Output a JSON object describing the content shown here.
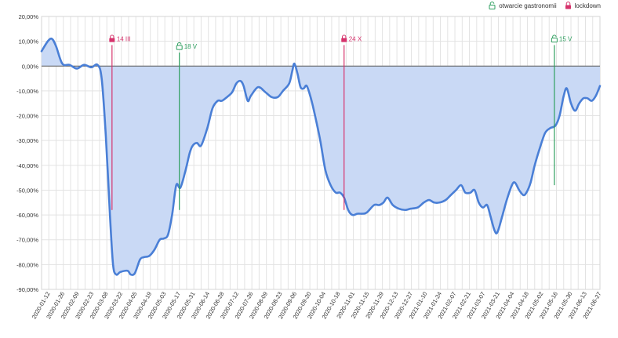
{
  "chart_data": {
    "type": "area",
    "ylim": [
      -90,
      20
    ],
    "y_ticks": [
      20,
      10,
      0,
      -10,
      -20,
      -30,
      -40,
      -50,
      -60,
      -70,
      -80,
      -90
    ],
    "y_tick_labels": [
      "20,00%",
      "10,00%",
      "0,00%",
      "-10,00%",
      "-20,00%",
      "-30,00%",
      "-40,00%",
      "-50,00%",
      "-60,00%",
      "-70,00%",
      "-80,00%",
      "-90,00%"
    ],
    "x_range": [
      "2020-01-06",
      "2021-06-28"
    ],
    "x_tick_labels": [
      "2020-01-12",
      "2020-01-26",
      "2020-02-09",
      "2020-02-23",
      "2020-03-08",
      "2020-03-22",
      "2020-04-05",
      "2020-04-19",
      "2020-05-03",
      "2020-05-17",
      "2020-05-31",
      "2020-06-14",
      "2020-06-28",
      "2020-07-12",
      "2020-07-26",
      "2020-08-09",
      "2020-08-23",
      "2020-09-06",
      "2020-09-20",
      "2020-10-04",
      "2020-10-18",
      "2020-11-01",
      "2020-11-15",
      "2020-11-29",
      "2020-12-13",
      "2020-12-27",
      "2021-01-10",
      "2021-01-24",
      "2021-02-07",
      "2021-02-21",
      "2021-03-07",
      "2021-03-21",
      "2021-04-04",
      "2021-04-18",
      "2021-05-02",
      "2021-05-16",
      "2021-05-30",
      "2021-06-13",
      "2021-06-27"
    ],
    "grid": true,
    "legend_position": "top-right",
    "series": [
      {
        "color": "#4a7fd6",
        "fill": "#c9d9f5",
        "points": [
          [
            "2020-01-06",
            6
          ],
          [
            "2020-01-12",
            10
          ],
          [
            "2020-01-16",
            11
          ],
          [
            "2020-01-20",
            8
          ],
          [
            "2020-01-26",
            1
          ],
          [
            "2020-02-02",
            0.5
          ],
          [
            "2020-02-09",
            -1
          ],
          [
            "2020-02-16",
            0.5
          ],
          [
            "2020-02-23",
            -0.5
          ],
          [
            "2020-02-29",
            0.5
          ],
          [
            "2020-03-04",
            -5
          ],
          [
            "2020-03-08",
            -28
          ],
          [
            "2020-03-12",
            -60
          ],
          [
            "2020-03-15",
            -80
          ],
          [
            "2020-03-18",
            -84
          ],
          [
            "2020-03-22",
            -83
          ],
          [
            "2020-03-29",
            -82.5
          ],
          [
            "2020-04-01",
            -84
          ],
          [
            "2020-04-05",
            -83.5
          ],
          [
            "2020-04-10",
            -78
          ],
          [
            "2020-04-14",
            -77
          ],
          [
            "2020-04-19",
            -76.5
          ],
          [
            "2020-04-24",
            -74
          ],
          [
            "2020-04-29",
            -70
          ],
          [
            "2020-05-03",
            -69.5
          ],
          [
            "2020-05-07",
            -68
          ],
          [
            "2020-05-11",
            -60
          ],
          [
            "2020-05-15",
            -48
          ],
          [
            "2020-05-19",
            -49
          ],
          [
            "2020-05-24",
            -42
          ],
          [
            "2020-05-28",
            -35
          ],
          [
            "2020-05-31",
            -32
          ],
          [
            "2020-06-04",
            -31
          ],
          [
            "2020-06-08",
            -32
          ],
          [
            "2020-06-14",
            -25
          ],
          [
            "2020-06-19",
            -17
          ],
          [
            "2020-06-24",
            -14
          ],
          [
            "2020-06-28",
            -14
          ],
          [
            "2020-07-03",
            -12.5
          ],
          [
            "2020-07-08",
            -10.5
          ],
          [
            "2020-07-12",
            -7
          ],
          [
            "2020-07-16",
            -6
          ],
          [
            "2020-07-19",
            -8
          ],
          [
            "2020-07-23",
            -14
          ],
          [
            "2020-07-26",
            -12
          ],
          [
            "2020-08-02",
            -8.5
          ],
          [
            "2020-08-09",
            -10.5
          ],
          [
            "2020-08-15",
            -12.5
          ],
          [
            "2020-08-21",
            -12.5
          ],
          [
            "2020-08-26",
            -10
          ],
          [
            "2020-09-01",
            -7
          ],
          [
            "2020-09-04",
            -2
          ],
          [
            "2020-09-06",
            1
          ],
          [
            "2020-09-09",
            -3
          ],
          [
            "2020-09-12",
            -8.5
          ],
          [
            "2020-09-15",
            -9
          ],
          [
            "2020-09-18",
            -8
          ],
          [
            "2020-09-22",
            -13
          ],
          [
            "2020-09-26",
            -20
          ],
          [
            "2020-10-01",
            -30
          ],
          [
            "2020-10-06",
            -42
          ],
          [
            "2020-10-11",
            -48
          ],
          [
            "2020-10-16",
            -51
          ],
          [
            "2020-10-20",
            -51
          ],
          [
            "2020-10-24",
            -53
          ],
          [
            "2020-10-28",
            -58
          ],
          [
            "2020-11-01",
            -60
          ],
          [
            "2020-11-06",
            -59.5
          ],
          [
            "2020-11-11",
            -59.5
          ],
          [
            "2020-11-15",
            -59
          ],
          [
            "2020-11-22",
            -56
          ],
          [
            "2020-11-27",
            -56
          ],
          [
            "2020-12-01",
            -55
          ],
          [
            "2020-12-05",
            -53
          ],
          [
            "2020-12-10",
            -56
          ],
          [
            "2020-12-16",
            -57.5
          ],
          [
            "2020-12-22",
            -58
          ],
          [
            "2020-12-27",
            -57.5
          ],
          [
            "2021-01-03",
            -57
          ],
          [
            "2021-01-09",
            -55
          ],
          [
            "2021-01-14",
            -54
          ],
          [
            "2021-01-19",
            -55
          ],
          [
            "2021-01-24",
            -55
          ],
          [
            "2021-01-30",
            -54
          ],
          [
            "2021-02-04",
            -52
          ],
          [
            "2021-02-09",
            -50
          ],
          [
            "2021-02-14",
            -48
          ],
          [
            "2021-02-18",
            -51
          ],
          [
            "2021-02-23",
            -51
          ],
          [
            "2021-02-27",
            -50
          ],
          [
            "2021-03-03",
            -55
          ],
          [
            "2021-03-07",
            -57
          ],
          [
            "2021-03-11",
            -56
          ],
          [
            "2021-03-14",
            -60
          ],
          [
            "2021-03-18",
            -66
          ],
          [
            "2021-03-21",
            -67
          ],
          [
            "2021-03-26",
            -60
          ],
          [
            "2021-03-30",
            -54
          ],
          [
            "2021-04-04",
            -48
          ],
          [
            "2021-04-07",
            -47
          ],
          [
            "2021-04-11",
            -50
          ],
          [
            "2021-04-15",
            -52
          ],
          [
            "2021-04-18",
            -51
          ],
          [
            "2021-04-22",
            -47
          ],
          [
            "2021-04-26",
            -40
          ],
          [
            "2021-05-01",
            -33
          ],
          [
            "2021-05-06",
            -27
          ],
          [
            "2021-05-11",
            -25
          ],
          [
            "2021-05-16",
            -24
          ],
          [
            "2021-05-20",
            -20
          ],
          [
            "2021-05-24",
            -12
          ],
          [
            "2021-05-27",
            -9
          ],
          [
            "2021-05-31",
            -15
          ],
          [
            "2021-06-04",
            -18
          ],
          [
            "2021-06-08",
            -15
          ],
          [
            "2021-06-12",
            -13
          ],
          [
            "2021-06-16",
            -13
          ],
          [
            "2021-06-20",
            -14
          ],
          [
            "2021-06-24",
            -12
          ],
          [
            "2021-06-28",
            -8
          ]
        ]
      }
    ],
    "legend": [
      {
        "label": "otwarcie gastronomii",
        "color": "#2e9f5f",
        "icon": "unlocked-padlock-icon"
      },
      {
        "label": "lockdown",
        "color": "#d6336c",
        "icon": "locked-padlock-icon"
      }
    ],
    "annotations": [
      {
        "date": "2020-03-14",
        "label": "14 III",
        "kind": "lockdown",
        "color": "#d6336c",
        "y_from": 11,
        "y_to": -58
      },
      {
        "date": "2020-05-18",
        "label": "18 V",
        "kind": "opening",
        "color": "#2e9f5f",
        "y_from": 8,
        "y_to": -58
      },
      {
        "date": "2020-10-24",
        "label": "24 X",
        "kind": "lockdown",
        "color": "#d6336c",
        "y_from": 11,
        "y_to": -58
      },
      {
        "date": "2021-05-15",
        "label": "15 V",
        "kind": "opening",
        "color": "#2e9f5f",
        "y_from": 11,
        "y_to": -48
      }
    ]
  }
}
